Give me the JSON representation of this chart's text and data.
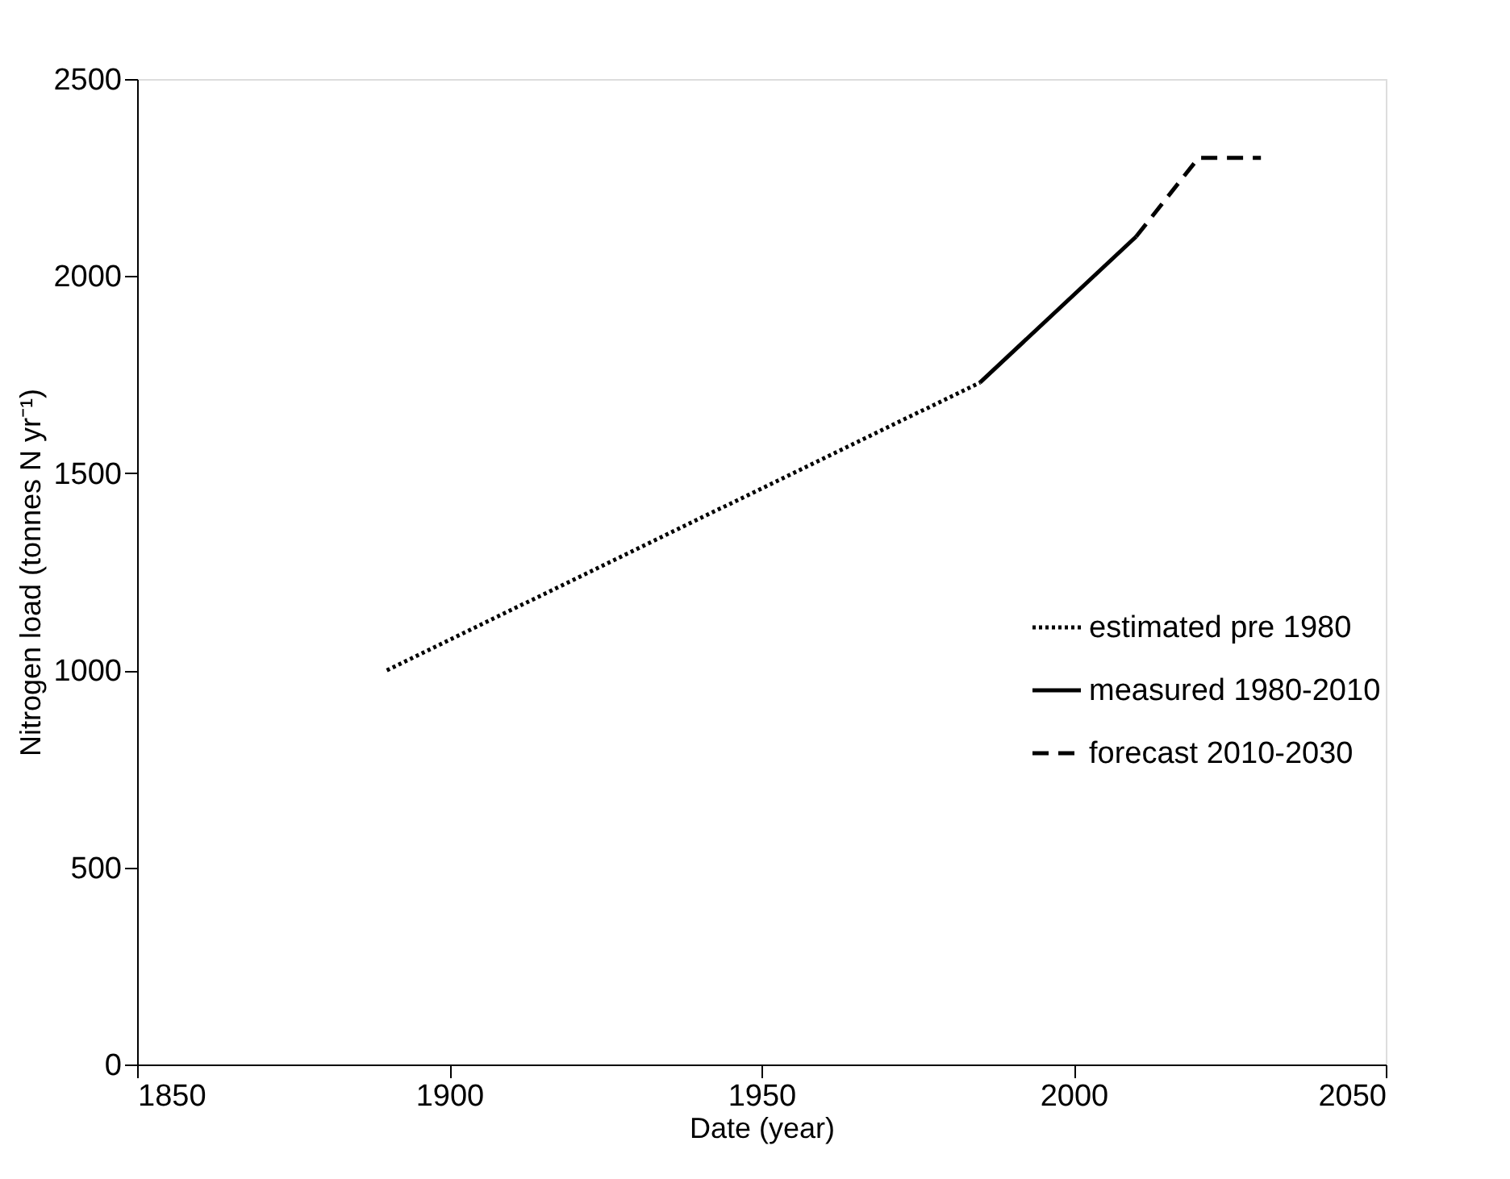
{
  "chart_data": {
    "type": "line",
    "xlabel": "Date (year)",
    "ylabel": "Nitrogen load (tonnes N yr⁻¹)",
    "xlim": [
      1850,
      2050
    ],
    "xticks": [
      1850,
      1900,
      1950,
      2000,
      2050
    ],
    "ylim": [
      0,
      2500
    ],
    "yticks": [
      0,
      500,
      1000,
      1500,
      2000,
      2500
    ],
    "grid": false,
    "legend": "right",
    "series": [
      {
        "name": "estimated pre 1980",
        "color": "#000000",
        "line_style": "dotted",
        "x": [
          1890,
          1985
        ],
        "values": [
          1000,
          1730
        ]
      },
      {
        "name": "measured 1980-2010",
        "color": "#000000",
        "line_style": "solid",
        "x": [
          1985,
          2010
        ],
        "values": [
          1730,
          2100
        ]
      },
      {
        "name": "forecast 2010-2030",
        "color": "#000000",
        "line_style": "dashed",
        "x": [
          2010,
          2020,
          2030
        ],
        "values": [
          2100,
          2300,
          2300
        ]
      }
    ]
  }
}
